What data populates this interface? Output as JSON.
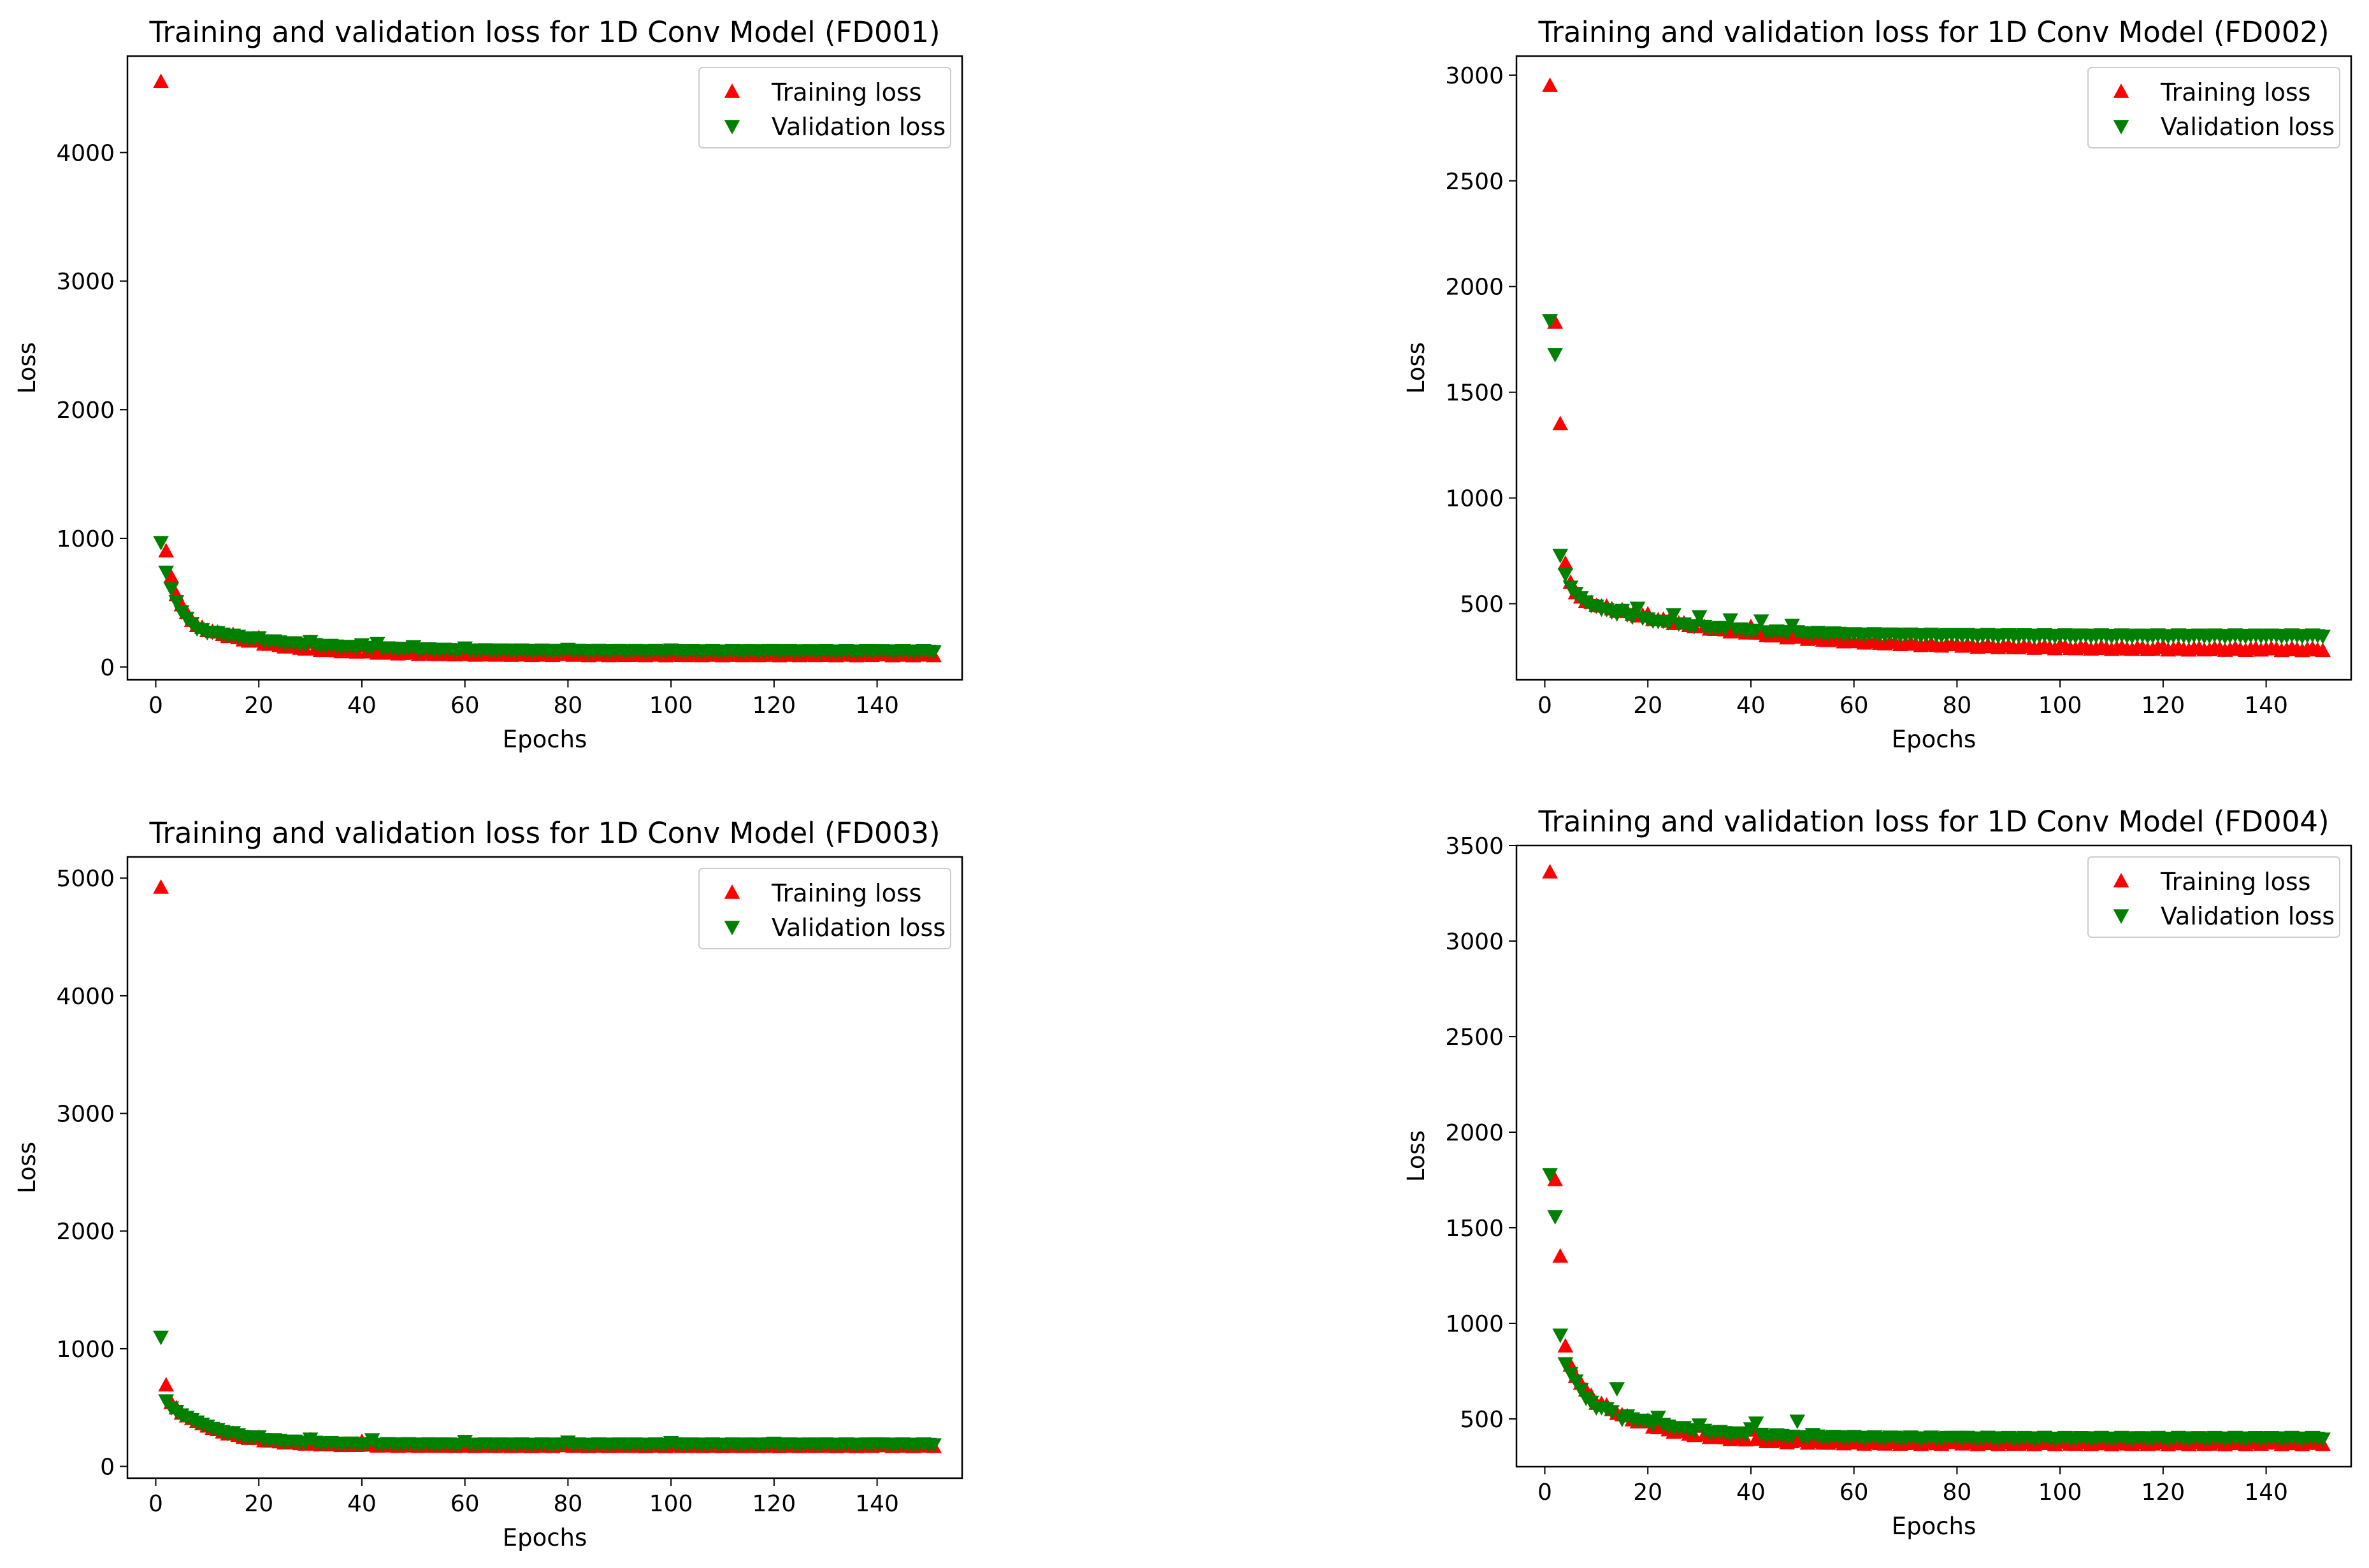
{
  "colors": {
    "training": "#ff0000",
    "validation": "#008000",
    "axes": "#000000",
    "legend_border": "#cccccc"
  },
  "chart_data": [
    {
      "type": "scatter",
      "title": "Training and validation loss for 1D Conv Model (FD001)",
      "xlabel": "Epochs",
      "ylabel": "Loss",
      "xlim": [
        -5.5,
        156.5
      ],
      "ylim": [
        -100,
        4750
      ],
      "xticks": [
        0,
        20,
        40,
        60,
        80,
        100,
        120,
        140
      ],
      "yticks": [
        0,
        1000,
        2000,
        3000,
        4000
      ],
      "legend": {
        "placement": "upper right",
        "entries": [
          "Training loss",
          "Validation loss"
        ]
      },
      "grid": false,
      "series": [
        {
          "name": "Training loss",
          "marker": "triangle-up",
          "color": "#ff0000",
          "points": [
            [
              1,
              4550
            ],
            [
              2,
              900
            ],
            [
              3,
              700
            ],
            [
              4,
              560
            ],
            [
              5,
              480
            ],
            [
              6,
              420
            ],
            [
              7,
              360
            ],
            [
              8,
              320
            ],
            [
              10,
              280
            ],
            [
              15,
              250
            ],
            [
              20,
              225
            ],
            [
              30,
              190
            ],
            [
              40,
              160
            ],
            [
              50,
              140
            ],
            [
              60,
              130
            ],
            [
              80,
              115
            ],
            [
              100,
              105
            ],
            [
              120,
              100
            ],
            [
              140,
              95
            ],
            [
              150,
              90
            ]
          ],
          "trend": {
            "from": 8,
            "to": 151,
            "start": 320,
            "end": 90,
            "decay": 14
          }
        },
        {
          "name": "Validation loss",
          "marker": "triangle-down",
          "color": "#008000",
          "points": [
            [
              1,
              970
            ],
            [
              2,
              740
            ],
            [
              3,
              610
            ],
            [
              4,
              510
            ],
            [
              5,
              430
            ],
            [
              6,
              380
            ],
            [
              7,
              340
            ],
            [
              8,
              300
            ],
            [
              10,
              270
            ],
            [
              15,
              250
            ],
            [
              20,
              230
            ],
            [
              30,
              200
            ],
            [
              40,
              175
            ],
            [
              43,
              185
            ],
            [
              50,
              160
            ],
            [
              60,
              150
            ],
            [
              80,
              140
            ],
            [
              100,
              135
            ],
            [
              120,
              130
            ],
            [
              140,
              128
            ],
            [
              150,
              125
            ]
          ],
          "trend": {
            "from": 8,
            "to": 151,
            "start": 300,
            "end": 125,
            "decay": 18
          }
        }
      ]
    },
    {
      "type": "scatter",
      "title": "Training and validation loss for 1D Conv Model (FD002)",
      "xlabel": "Epochs",
      "ylabel": "Loss",
      "xlim": [
        -5.5,
        156.5
      ],
      "ylim": [
        140,
        3090
      ],
      "xticks": [
        0,
        20,
        40,
        60,
        80,
        100,
        120,
        140
      ],
      "yticks": [
        500,
        1000,
        1500,
        2000,
        2500,
        3000
      ],
      "legend": {
        "placement": "upper right",
        "entries": [
          "Training loss",
          "Validation loss"
        ]
      },
      "grid": false,
      "series": [
        {
          "name": "Training loss",
          "marker": "triangle-up",
          "color": "#ff0000",
          "points": [
            [
              1,
              2950
            ],
            [
              2,
              1830
            ],
            [
              3,
              1350
            ],
            [
              4,
              690
            ],
            [
              5,
              600
            ],
            [
              6,
              550
            ],
            [
              8,
              510
            ],
            [
              10,
              490
            ],
            [
              15,
              470
            ],
            [
              20,
              450
            ],
            [
              30,
              420
            ],
            [
              40,
              390
            ],
            [
              50,
              340
            ],
            [
              51,
              330
            ],
            [
              60,
              320
            ],
            [
              80,
              305
            ],
            [
              100,
              300
            ],
            [
              120,
              295
            ],
            [
              140,
              285
            ],
            [
              150,
              280
            ]
          ],
          "trend": {
            "from": 8,
            "to": 151,
            "start": 510,
            "end": 280,
            "decay": 30
          }
        },
        {
          "name": "Validation loss",
          "marker": "triangle-down",
          "color": "#008000",
          "points": [
            [
              1,
              1840
            ],
            [
              2,
              1680
            ],
            [
              3,
              730
            ],
            [
              4,
              640
            ],
            [
              5,
              580
            ],
            [
              6,
              550
            ],
            [
              8,
              510
            ],
            [
              10,
              490
            ],
            [
              15,
              470
            ],
            [
              18,
              480
            ],
            [
              25,
              450
            ],
            [
              30,
              440
            ],
            [
              36,
              425
            ],
            [
              42,
              420
            ],
            [
              48,
              400
            ],
            [
              52,
              360
            ],
            [
              60,
              360
            ],
            [
              80,
              355
            ],
            [
              100,
              352
            ],
            [
              120,
              350
            ],
            [
              140,
              350
            ],
            [
              150,
              350
            ]
          ],
          "trend": {
            "from": 8,
            "to": 151,
            "start": 500,
            "end": 350,
            "decay": 18
          }
        }
      ]
    },
    {
      "type": "scatter",
      "title": "Training and validation loss for 1D Conv Model (FD003)",
      "xlabel": "Epochs",
      "ylabel": "Loss",
      "xlim": [
        -5.5,
        156.5
      ],
      "ylim": [
        -100,
        5180
      ],
      "xticks": [
        0,
        20,
        40,
        60,
        80,
        100,
        120,
        140
      ],
      "yticks": [
        0,
        1000,
        2000,
        3000,
        4000,
        5000
      ],
      "legend": {
        "placement": "upper right",
        "entries": [
          "Training loss",
          "Validation loss"
        ]
      },
      "grid": false,
      "series": [
        {
          "name": "Training loss",
          "marker": "triangle-up",
          "color": "#ff0000",
          "points": [
            [
              1,
              4920
            ],
            [
              2,
              690
            ],
            [
              3,
              540
            ],
            [
              5,
              450
            ],
            [
              8,
              380
            ],
            [
              10,
              340
            ],
            [
              15,
              280
            ],
            [
              20,
              245
            ],
            [
              30,
              225
            ],
            [
              40,
              210
            ],
            [
              60,
              200
            ],
            [
              80,
              195
            ],
            [
              100,
              190
            ],
            [
              120,
              180
            ],
            [
              140,
              175
            ],
            [
              150,
              170
            ]
          ],
          "trend": {
            "from": 8,
            "to": 151,
            "start": 380,
            "end": 170,
            "decay": 9
          }
        },
        {
          "name": "Validation loss",
          "marker": "triangle-down",
          "color": "#008000",
          "points": [
            [
              1,
              1100
            ],
            [
              2,
              560
            ],
            [
              3,
              500
            ],
            [
              5,
              440
            ],
            [
              8,
              380
            ],
            [
              10,
              345
            ],
            [
              15,
              290
            ],
            [
              20,
              255
            ],
            [
              30,
              235
            ],
            [
              42,
              230
            ],
            [
              60,
              215
            ],
            [
              80,
              210
            ],
            [
              100,
              205
            ],
            [
              120,
              200
            ],
            [
              140,
              195
            ],
            [
              150,
              190
            ]
          ],
          "trend": {
            "from": 8,
            "to": 151,
            "start": 380,
            "end": 190,
            "decay": 9
          }
        }
      ]
    },
    {
      "type": "scatter",
      "title": "Training and validation loss for 1D Conv Model (FD004)",
      "xlabel": "Epochs",
      "ylabel": "Loss",
      "xlim": [
        -5.5,
        156.5
      ],
      "ylim": [
        250,
        3500
      ],
      "xticks": [
        0,
        20,
        40,
        60,
        80,
        100,
        120,
        140
      ],
      "yticks": [
        500,
        1000,
        1500,
        2000,
        2500,
        3000,
        3500
      ],
      "legend": {
        "placement": "upper right",
        "entries": [
          "Training loss",
          "Validation loss"
        ]
      },
      "grid": false,
      "series": [
        {
          "name": "Training loss",
          "marker": "triangle-up",
          "color": "#ff0000",
          "points": [
            [
              1,
              3360
            ],
            [
              2,
              1750
            ],
            [
              3,
              1350
            ],
            [
              4,
              880
            ],
            [
              5,
              780
            ],
            [
              6,
              720
            ],
            [
              8,
              650
            ],
            [
              10,
              580
            ],
            [
              15,
              520
            ],
            [
              20,
              490
            ],
            [
              30,
              460
            ],
            [
              40,
              440
            ],
            [
              50,
              400
            ],
            [
              60,
              395
            ],
            [
              80,
              385
            ],
            [
              100,
              380
            ],
            [
              120,
              375
            ],
            [
              140,
              372
            ],
            [
              150,
              370
            ]
          ],
          "trend": {
            "from": 8,
            "to": 151,
            "start": 640,
            "end": 370,
            "decay": 12
          }
        },
        {
          "name": "Validation loss",
          "marker": "triangle-down",
          "color": "#008000",
          "points": [
            [
              1,
              1780
            ],
            [
              2,
              1560
            ],
            [
              3,
              940
            ],
            [
              4,
              790
            ],
            [
              5,
              740
            ],
            [
              6,
              700
            ],
            [
              8,
              610
            ],
            [
              10,
              560
            ],
            [
              14,
              660
            ],
            [
              15,
              500
            ],
            [
              20,
              490
            ],
            [
              22,
              510
            ],
            [
              30,
              470
            ],
            [
              40,
              450
            ],
            [
              41,
              480
            ],
            [
              49,
              490
            ],
            [
              52,
              420
            ],
            [
              60,
              410
            ],
            [
              80,
              405
            ],
            [
              100,
              400
            ],
            [
              120,
              400
            ],
            [
              140,
              400
            ],
            [
              150,
              400
            ]
          ],
          "trend": {
            "from": 8,
            "to": 151,
            "start": 600,
            "end": 400,
            "decay": 14
          }
        }
      ]
    }
  ]
}
